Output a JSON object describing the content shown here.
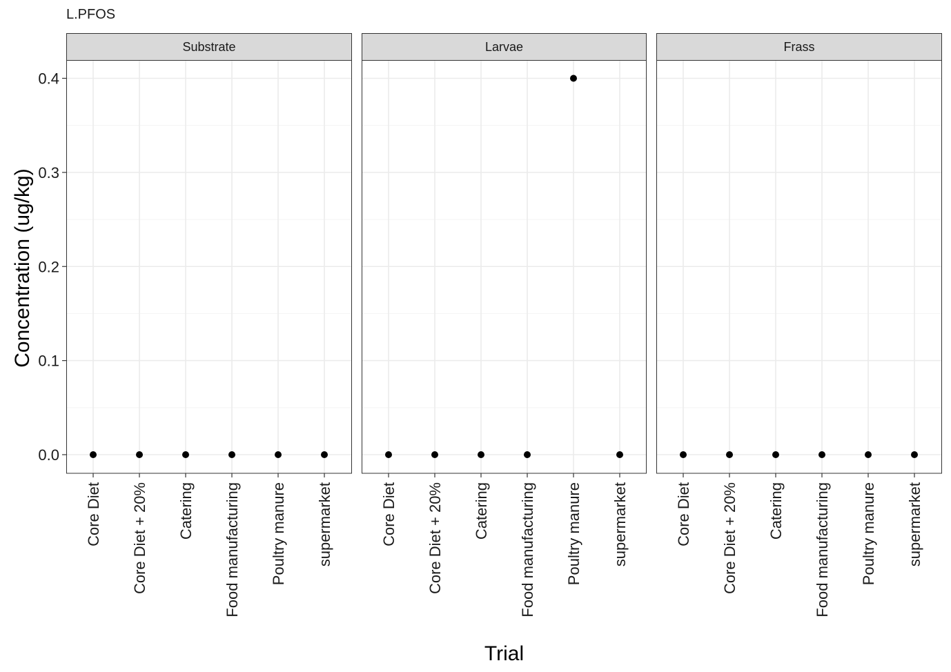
{
  "chart_data": {
    "type": "scatter",
    "title": "L.PFOS",
    "xlabel": "Trial",
    "ylabel": "Concentration (ug/kg)",
    "ylim": [
      -0.02,
      0.42
    ],
    "yticks": [
      0.0,
      0.1,
      0.2,
      0.3,
      0.4
    ],
    "ytick_labels": [
      "0.0",
      "0.1",
      "0.2",
      "0.3",
      "0.4"
    ],
    "grid": true,
    "categories": [
      "Core Diet",
      "Core Diet + 20%",
      "Catering",
      "Food manufacturing",
      "Poultry manure",
      "supermarket"
    ],
    "facets": [
      {
        "name": "Substrate",
        "values": [
          0,
          0,
          0,
          0,
          0,
          0
        ]
      },
      {
        "name": "Larvae",
        "values": [
          0,
          0,
          0,
          0,
          0.4,
          0
        ]
      },
      {
        "name": "Frass",
        "values": [
          0,
          0,
          0,
          0,
          0,
          0
        ]
      }
    ],
    "colors": {
      "point": "#000000",
      "strip": "#d9d9d9",
      "grid": "#ebebeb",
      "border": "#333333"
    }
  }
}
